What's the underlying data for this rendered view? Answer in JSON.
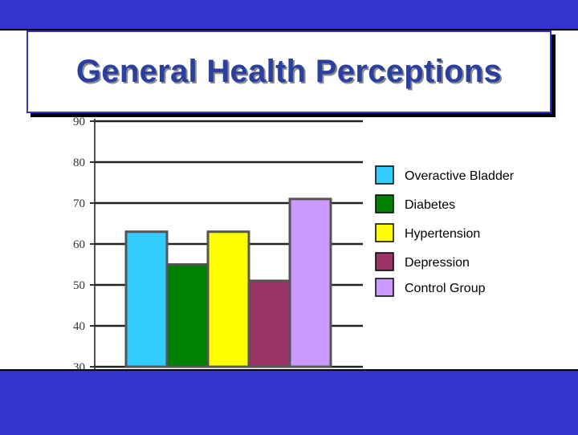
{
  "slide": {
    "title": "General Health Perceptions"
  },
  "colors": {
    "bar_frame": "#3333cc",
    "title_text": "#2a3f9e"
  },
  "chart_data": {
    "type": "bar",
    "title": "General Health Perceptions",
    "xlabel": "",
    "ylabel": "",
    "ylim": [
      30,
      90
    ],
    "yticks": [
      30,
      40,
      50,
      60,
      70,
      80,
      90
    ],
    "grid": false,
    "legend_position": "right",
    "series": [
      {
        "name": "Overactive Bladder",
        "values": [
          63
        ],
        "color": "#33ccff"
      },
      {
        "name": "Diabetes",
        "values": [
          55
        ],
        "color": "#008000"
      },
      {
        "name": "Hypertension",
        "values": [
          63
        ],
        "color": "#ffff00"
      },
      {
        "name": "Depression",
        "values": [
          51
        ],
        "color": "#993366"
      },
      {
        "name": "Control Group",
        "values": [
          71
        ],
        "color": "#cc99ff"
      }
    ]
  }
}
